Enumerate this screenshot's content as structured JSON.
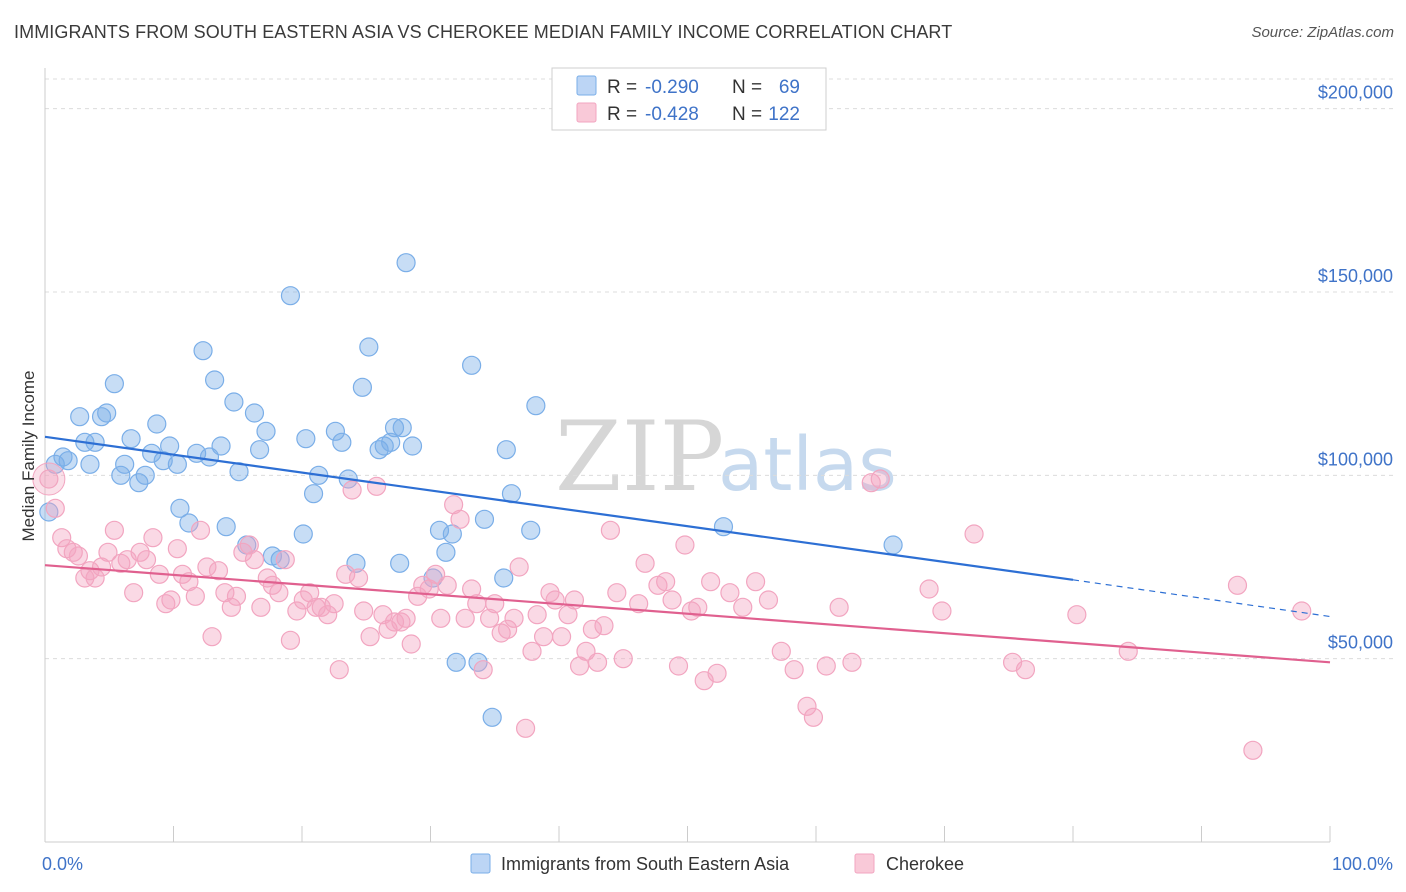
{
  "title": "IMMIGRANTS FROM SOUTH EASTERN ASIA VS CHEROKEE MEDIAN FAMILY INCOME CORRELATION CHART",
  "source": "Source: ZipAtlas.com",
  "watermark": {
    "zip": "ZIP",
    "atlas": "atlas"
  },
  "chart_data": {
    "type": "scatter",
    "title": "IMMIGRANTS FROM SOUTH EASTERN ASIA VS CHEROKEE MEDIAN FAMILY INCOME CORRELATION CHART",
    "xlabel": "",
    "ylabel": "Median Family Income",
    "xlim": [
      0,
      100
    ],
    "ylim": [
      0,
      210000
    ],
    "x_tick_labels": [
      "0.0%",
      "100.0%"
    ],
    "y_ticks": [
      {
        "value": 50000,
        "label": "$50,000"
      },
      {
        "value": 100000,
        "label": "$100,000"
      },
      {
        "value": 150000,
        "label": "$150,000"
      },
      {
        "value": 200000,
        "label": "$200,000"
      }
    ],
    "grid": "horizontal dashed",
    "legend_placement": "top-center",
    "series": [
      {
        "name": "Immigrants from South Eastern Asia",
        "color": "#7aaee8",
        "line_color": "#2d6fd4",
        "R": "-0.290",
        "N": "69",
        "trend": {
          "x0": 0,
          "y0": 110500,
          "x1": 80,
          "y1": 71500,
          "dash_to_x": 100,
          "dash_to_y": 61500
        },
        "points": [
          [
            0.3,
            90000
          ],
          [
            0.8,
            103000
          ],
          [
            1.4,
            105000
          ],
          [
            1.8,
            104000
          ],
          [
            2.7,
            116000
          ],
          [
            3.1,
            109000
          ],
          [
            3.5,
            103000
          ],
          [
            3.9,
            109000
          ],
          [
            4.4,
            116000
          ],
          [
            4.8,
            117000
          ],
          [
            5.4,
            125000
          ],
          [
            5.9,
            100000
          ],
          [
            6.2,
            103000
          ],
          [
            6.7,
            110000
          ],
          [
            7.3,
            98000
          ],
          [
            7.8,
            100000
          ],
          [
            8.3,
            106000
          ],
          [
            8.7,
            114000
          ],
          [
            9.2,
            104000
          ],
          [
            9.7,
            108000
          ],
          [
            10.3,
            103000
          ],
          [
            10.5,
            91000
          ],
          [
            11.2,
            87000
          ],
          [
            11.8,
            106000
          ],
          [
            12.3,
            134000
          ],
          [
            12.8,
            105000
          ],
          [
            13.2,
            126000
          ],
          [
            13.7,
            108000
          ],
          [
            14.1,
            86000
          ],
          [
            14.7,
            120000
          ],
          [
            15.1,
            101000
          ],
          [
            15.7,
            81000
          ],
          [
            16.3,
            117000
          ],
          [
            16.7,
            107000
          ],
          [
            17.2,
            112000
          ],
          [
            17.7,
            78000
          ],
          [
            18.3,
            77000
          ],
          [
            19.1,
            149000
          ],
          [
            20.1,
            84000
          ],
          [
            20.3,
            110000
          ],
          [
            20.9,
            95000
          ],
          [
            21.3,
            100000
          ],
          [
            22.6,
            112000
          ],
          [
            23.1,
            109000
          ],
          [
            23.6,
            99000
          ],
          [
            24.2,
            76000
          ],
          [
            24.7,
            124000
          ],
          [
            25.2,
            135000
          ],
          [
            26.0,
            107000
          ],
          [
            26.4,
            108000
          ],
          [
            26.9,
            109000
          ],
          [
            27.2,
            113000
          ],
          [
            27.8,
            113000
          ],
          [
            27.6,
            76000
          ],
          [
            28.1,
            158000
          ],
          [
            28.6,
            108000
          ],
          [
            30.2,
            72000
          ],
          [
            30.7,
            85000
          ],
          [
            31.2,
            79000
          ],
          [
            31.7,
            84000
          ],
          [
            32.0,
            49000
          ],
          [
            33.2,
            130000
          ],
          [
            33.7,
            49000
          ],
          [
            34.2,
            88000
          ],
          [
            34.8,
            34000
          ],
          [
            35.7,
            72000
          ],
          [
            35.9,
            107000
          ],
          [
            36.3,
            95000
          ],
          [
            37.8,
            85000
          ],
          [
            38.2,
            119000
          ],
          [
            52.8,
            86000
          ],
          [
            66.0,
            81000
          ]
        ]
      },
      {
        "name": "Cherokee",
        "color": "#f2a5c0",
        "line_color": "#e0608f",
        "R": "-0.428",
        "N": "122",
        "trend": {
          "x0": 0,
          "y0": 75500,
          "x1": 100,
          "y1": 49000
        },
        "points": [
          [
            0.3,
            99000
          ],
          [
            0.8,
            91000
          ],
          [
            1.3,
            83000
          ],
          [
            1.7,
            80000
          ],
          [
            2.2,
            79000
          ],
          [
            2.6,
            78000
          ],
          [
            3.1,
            72000
          ],
          [
            3.5,
            74000
          ],
          [
            3.9,
            72000
          ],
          [
            4.4,
            75000
          ],
          [
            4.9,
            79000
          ],
          [
            5.4,
            85000
          ],
          [
            5.9,
            76000
          ],
          [
            6.4,
            77000
          ],
          [
            6.9,
            68000
          ],
          [
            7.4,
            79000
          ],
          [
            7.9,
            77000
          ],
          [
            8.4,
            83000
          ],
          [
            8.9,
            73000
          ],
          [
            9.4,
            65000
          ],
          [
            9.8,
            66000
          ],
          [
            10.3,
            80000
          ],
          [
            10.7,
            73000
          ],
          [
            11.2,
            71000
          ],
          [
            11.7,
            67000
          ],
          [
            12.1,
            85000
          ],
          [
            12.6,
            75000
          ],
          [
            13.0,
            56000
          ],
          [
            13.5,
            74000
          ],
          [
            14.0,
            68000
          ],
          [
            14.5,
            64000
          ],
          [
            14.9,
            67000
          ],
          [
            15.4,
            79000
          ],
          [
            15.9,
            81000
          ],
          [
            16.3,
            77000
          ],
          [
            16.8,
            64000
          ],
          [
            17.3,
            72000
          ],
          [
            17.7,
            70000
          ],
          [
            18.2,
            68000
          ],
          [
            18.7,
            77000
          ],
          [
            19.1,
            55000
          ],
          [
            19.6,
            63000
          ],
          [
            20.1,
            66000
          ],
          [
            20.6,
            68000
          ],
          [
            21.1,
            64000
          ],
          [
            21.5,
            64000
          ],
          [
            22.0,
            62000
          ],
          [
            22.5,
            65000
          ],
          [
            22.9,
            47000
          ],
          [
            23.4,
            73000
          ],
          [
            23.9,
            96000
          ],
          [
            24.4,
            72000
          ],
          [
            24.8,
            63000
          ],
          [
            25.3,
            56000
          ],
          [
            25.8,
            97000
          ],
          [
            26.3,
            62000
          ],
          [
            26.7,
            58000
          ],
          [
            27.2,
            60000
          ],
          [
            27.7,
            60000
          ],
          [
            28.1,
            61000
          ],
          [
            28.5,
            54000
          ],
          [
            29.0,
            67000
          ],
          [
            29.4,
            70000
          ],
          [
            29.9,
            69000
          ],
          [
            30.4,
            73000
          ],
          [
            30.8,
            61000
          ],
          [
            31.3,
            70000
          ],
          [
            31.8,
            92000
          ],
          [
            32.3,
            88000
          ],
          [
            32.7,
            61000
          ],
          [
            33.2,
            69000
          ],
          [
            33.6,
            65000
          ],
          [
            34.1,
            47000
          ],
          [
            34.6,
            61000
          ],
          [
            35.0,
            65000
          ],
          [
            35.5,
            57000
          ],
          [
            36.0,
            58000
          ],
          [
            36.5,
            61000
          ],
          [
            36.9,
            75000
          ],
          [
            37.4,
            31000
          ],
          [
            37.9,
            52000
          ],
          [
            38.3,
            62000
          ],
          [
            38.8,
            56000
          ],
          [
            39.3,
            68000
          ],
          [
            39.7,
            66000
          ],
          [
            40.2,
            56000
          ],
          [
            40.7,
            62000
          ],
          [
            41.2,
            66000
          ],
          [
            41.6,
            48000
          ],
          [
            42.1,
            52000
          ],
          [
            42.6,
            58000
          ],
          [
            43.0,
            49000
          ],
          [
            43.5,
            59000
          ],
          [
            44.0,
            85000
          ],
          [
            44.5,
            68000
          ],
          [
            45.0,
            50000
          ],
          [
            46.2,
            65000
          ],
          [
            46.7,
            76000
          ],
          [
            47.7,
            70000
          ],
          [
            48.3,
            71000
          ],
          [
            48.8,
            66000
          ],
          [
            49.3,
            48000
          ],
          [
            49.8,
            81000
          ],
          [
            50.3,
            63000
          ],
          [
            50.8,
            64000
          ],
          [
            51.3,
            44000
          ],
          [
            51.8,
            71000
          ],
          [
            52.3,
            46000
          ],
          [
            53.3,
            68000
          ],
          [
            54.3,
            64000
          ],
          [
            55.3,
            71000
          ],
          [
            56.3,
            66000
          ],
          [
            57.3,
            52000
          ],
          [
            58.3,
            47000
          ],
          [
            59.3,
            37000
          ],
          [
            59.8,
            34000
          ],
          [
            60.8,
            48000
          ],
          [
            61.8,
            64000
          ],
          [
            62.8,
            49000
          ],
          [
            64.3,
            98000
          ],
          [
            65.0,
            99000
          ],
          [
            68.8,
            69000
          ],
          [
            69.8,
            63000
          ],
          [
            72.3,
            84000
          ],
          [
            75.3,
            49000
          ],
          [
            76.3,
            47000
          ],
          [
            80.3,
            62000
          ],
          [
            84.3,
            52000
          ],
          [
            92.8,
            70000
          ],
          [
            97.8,
            63000
          ],
          [
            94.0,
            25000
          ]
        ]
      }
    ]
  },
  "legend": {
    "r_label": "R =",
    "n_label": "N =",
    "bottom": [
      "Immigrants from South Eastern Asia",
      "Cherokee"
    ]
  }
}
